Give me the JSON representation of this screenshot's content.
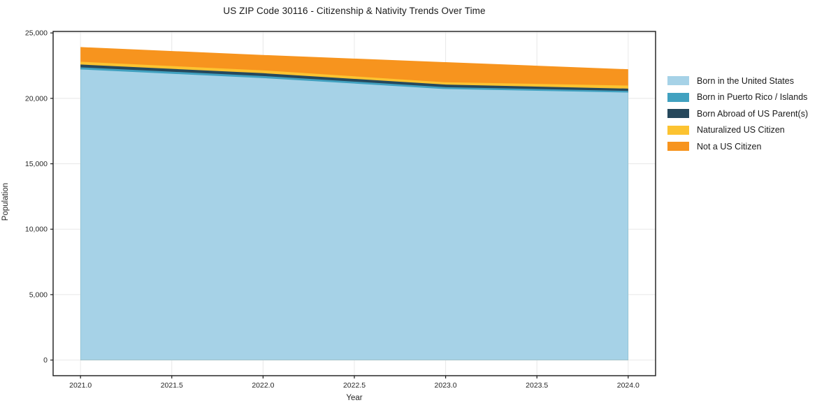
{
  "title": "US ZIP Code 30116 - Citizenship & Nativity Trends Over Time",
  "chart_data": {
    "type": "area",
    "stacked": true,
    "title": "US ZIP Code 30116 - Citizenship & Nativity Trends Over Time",
    "xlabel": "Year",
    "ylabel": "Population",
    "x": [
      2021,
      2022,
      2023,
      2024
    ],
    "series": [
      {
        "name": "Born in the United States",
        "color": "#a6d2e7",
        "values": [
          22210,
          21550,
          20710,
          20445
        ]
      },
      {
        "name": "Born in Puerto Rico / Islands",
        "color": "#41a1c0",
        "values": [
          160,
          160,
          145,
          125
        ]
      },
      {
        "name": "Born Abroad of US Parent(s)",
        "color": "#26485c",
        "values": [
          215,
          215,
          200,
          175
        ]
      },
      {
        "name": "Naturalized US Citizen",
        "color": "#fcc331",
        "values": [
          215,
          215,
          175,
          235
        ]
      },
      {
        "name": "Not a US Citizen",
        "color": "#f7941e",
        "values": [
          1120,
          1175,
          1535,
          1245
        ]
      }
    ],
    "totals": [
      23920,
      23315,
      22765,
      22225
    ],
    "x_ticks": [
      2021.0,
      2021.5,
      2022.0,
      2022.5,
      2023.0,
      2023.5,
      2024.0
    ],
    "x_tick_labels": [
      "2021.0",
      "2021.5",
      "2022.0",
      "2022.5",
      "2023.0",
      "2023.5",
      "2024.0"
    ],
    "y_ticks": [
      0,
      5000,
      10000,
      15000,
      20000,
      25000
    ],
    "y_tick_labels": [
      "0",
      "5,000",
      "10,000",
      "15,000",
      "20,000",
      "25,000"
    ],
    "xlim": [
      2020.85,
      2024.15
    ],
    "ylim": [
      -1196,
      25116
    ],
    "grid": true,
    "grid_color": "#e8e8e8",
    "spine_color": "#1a1a1a",
    "legend_position": "right"
  }
}
